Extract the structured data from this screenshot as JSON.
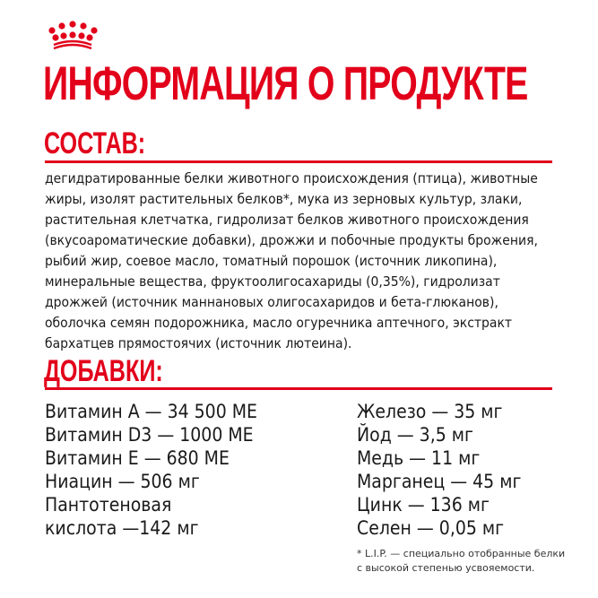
{
  "brand": {
    "logo": "royal-canin-crown",
    "color": "#e2001a"
  },
  "title": "ИНФОРМАЦИЯ О ПРОДУКТЕ",
  "composition": {
    "heading": "СОСТАВ:",
    "lines": [
      "дегидратированные белки животного происхождения (птица), животные",
      "жиры, изолят растительных белков*, мука из зерновых культур, злаки,",
      "растительная клетчатка, гидролизат белков животного происхождения",
      "(вкусоароматические добавки), дрожжи и побочные продукты брожения,",
      "рыбий жир, соевое масло, томатный порошок (источник ликопина),",
      "минеральные вещества, фруктоолигосахариды (0,35%), гидролизат",
      "дрожжей (источник маннановых олигосахаридов и бета-глюканов),",
      "оболочка семян подорожника, масло огуречника аптечного, экстракт",
      "бархатцев прямостоячих (источник лютеина)."
    ]
  },
  "additives": {
    "heading": "ДОБАВКИ:",
    "left": [
      "Витамин А — 34 500 МЕ",
      "Витамин D3 — 1000 МЕ",
      "Витамин Е — 680 МЕ",
      "Ниацин — 506 мг",
      "Пантотеновая",
      "кислота —142 мг"
    ],
    "right": [
      "Железо — 35 мг",
      "Йод — 3,5 мг",
      "Медь — 11 мг",
      "Марганец — 45 мг",
      "Цинк — 136 мг",
      "Селен — 0,05 мг"
    ]
  },
  "footnote": [
    "* L.I.P. — специально отобранные белки",
    "с высокой степенью усвояемости."
  ]
}
